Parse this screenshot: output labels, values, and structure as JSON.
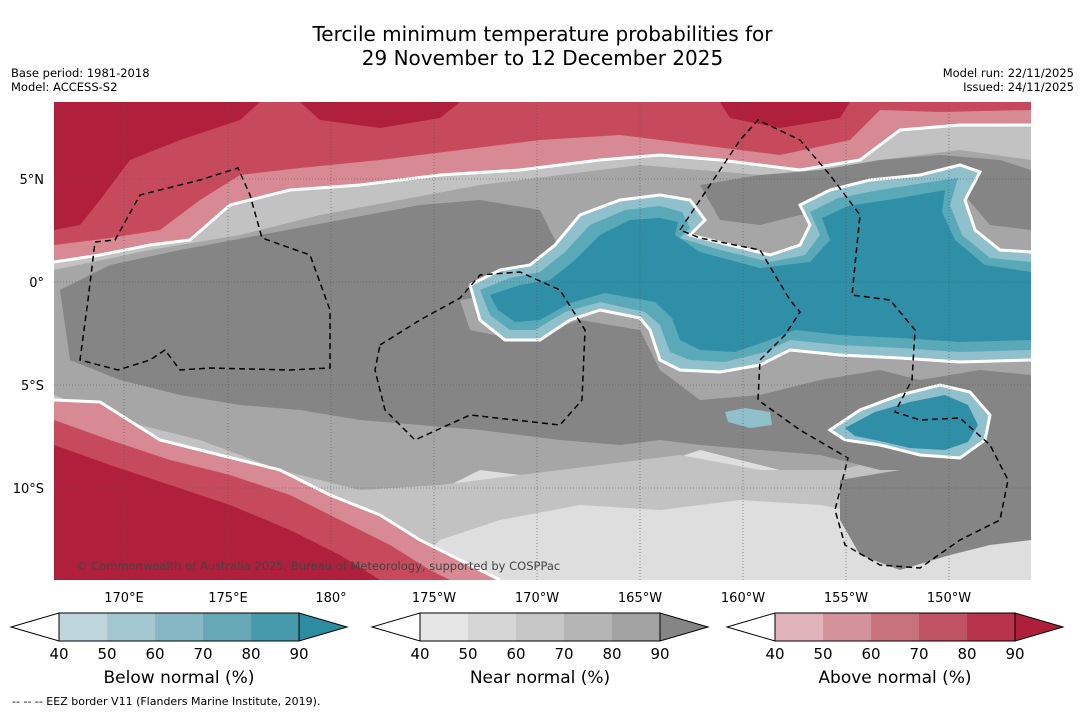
{
  "title": {
    "line1": "Tercile minimum temperature probabilities for",
    "line2": "29 November to 12 December 2025"
  },
  "meta_left": {
    "base_period": "Base period: 1981-2018",
    "model": "Model: ACCESS-S2"
  },
  "meta_right": {
    "model_run": "Model run: 22/11/2025",
    "issued": "Issued: 24/11/2025"
  },
  "map": {
    "lat_labels": [
      "5°N",
      "0°",
      "5°S",
      "10°S"
    ],
    "lon_labels": [
      "170°E",
      "175°E",
      "180°",
      "175°W",
      "170°W",
      "165°W",
      "160°W",
      "155°W",
      "150°W"
    ],
    "copyright": "© Commonwealth of Australia 2025, Bureau of Meteorology, supported by COSPPac",
    "colors": {
      "blue_dark": "#2e8fa6",
      "blue_mid": "#5aa9b8",
      "blue_light": "#8fc0cb",
      "grey_dark": "#858585",
      "grey_mid": "#a6a6a6",
      "grey_light": "#c6c6c6",
      "grey_pale": "#e2e2e2",
      "red_dark": "#b01f3c",
      "red_mid": "#c64a5c",
      "red_light": "#d78a94"
    }
  },
  "colorbars": [
    {
      "label": "Below normal (%)",
      "ticks": [
        "40",
        "50",
        "60",
        "70",
        "80",
        "90"
      ],
      "colors": [
        "#bdd5db",
        "#a3c8d0",
        "#85b8c4",
        "#67a8b7",
        "#479aab",
        "#2c8ca2"
      ]
    },
    {
      "label": "Near normal (%)",
      "ticks": [
        "40",
        "50",
        "60",
        "70",
        "80",
        "90"
      ],
      "colors": [
        "#e6e6e6",
        "#d6d6d6",
        "#c6c6c6",
        "#b4b4b4",
        "#a2a2a2",
        "#858585"
      ]
    },
    {
      "label": "Above normal (%)",
      "ticks": [
        "40",
        "50",
        "60",
        "70",
        "80",
        "90"
      ],
      "colors": [
        "#e0b4ba",
        "#d4939c",
        "#c8727e",
        "#bf5263",
        "#b8344a",
        "#ae1f3a"
      ]
    }
  ],
  "footnote": "--  --  -- EEZ border V11 (Flanders Marine Institute, 2019)."
}
